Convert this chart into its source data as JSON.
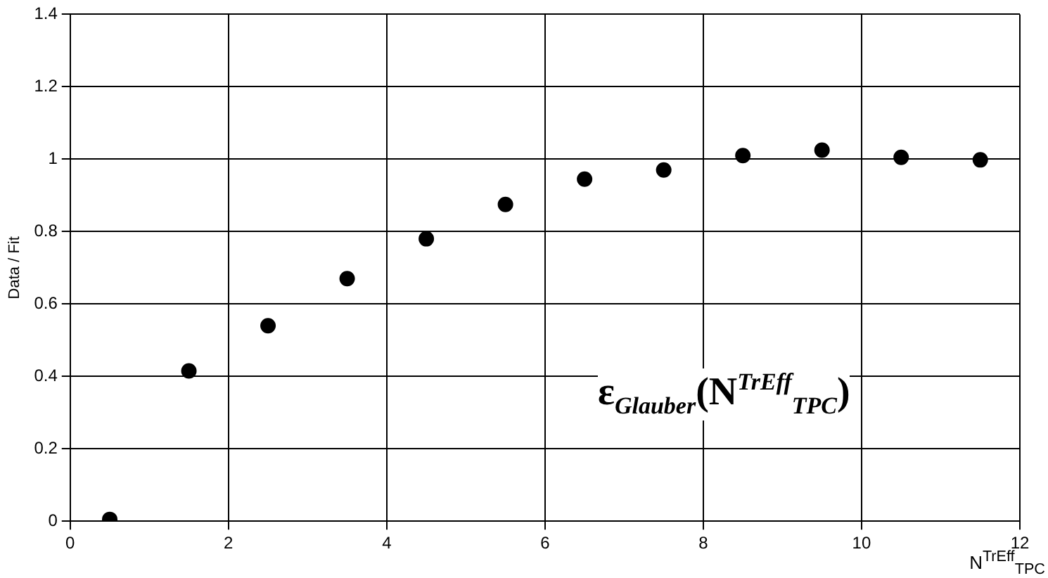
{
  "chart_data": {
    "type": "scatter",
    "ylabel": "Data / Fit",
    "xlabel": "N$^{TrEff}$$_{TPC}$",
    "annotations": [
      "ε$_{Glauber}$(N$^{TrEff}$$_{TPC}$)"
    ],
    "x": [
      0.5,
      1.5,
      2.5,
      3.5,
      4.5,
      5.5,
      6.5,
      7.5,
      8.5,
      9.5,
      10.5,
      11.5
    ],
    "series": [
      {
        "color": "#000000",
        "values": [
          0.005,
          0.415,
          0.54,
          0.67,
          0.78,
          0.875,
          0.945,
          0.97,
          1.01,
          1.025,
          1.005,
          0.998
        ]
      }
    ],
    "xlim": [
      0,
      12
    ],
    "xticks": [
      0,
      2,
      4,
      6,
      8,
      10,
      12
    ],
    "ylim": [
      0,
      1.4
    ],
    "yticks": [
      0,
      0.2,
      0.4,
      0.6,
      0.8,
      1,
      1.2,
      1.4
    ],
    "grid": true,
    "legend": false,
    "marker": "circle"
  }
}
